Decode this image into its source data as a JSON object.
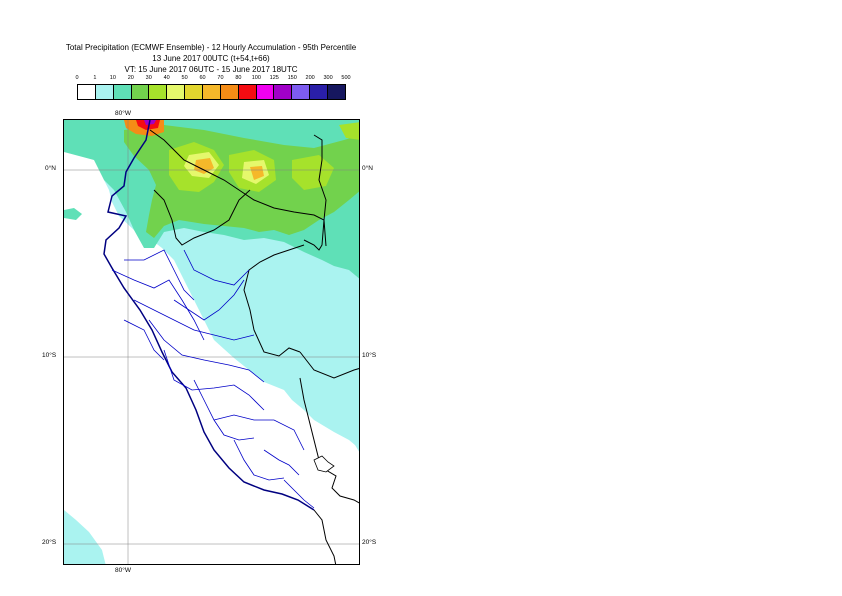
{
  "header": {
    "title": "Total Precipitation (ECMWF Ensemble) - 12 Hourly Accumulation - 95th Percentile",
    "base_time": "13 June 2017 00UTC (t+54,t+66)",
    "valid_time": "VT: 15 June 2017 06UTC - 15 June 2017 18UTC"
  },
  "legend": {
    "thresholds": [
      "0",
      "1",
      "10",
      "20",
      "30",
      "40",
      "50",
      "60",
      "70",
      "80",
      "100",
      "125",
      "150",
      "200",
      "300",
      "500"
    ],
    "colors": [
      "#ffffff",
      "#aaf3f0",
      "#5fe0b7",
      "#72d24d",
      "#a6e22b",
      "#e5f86c",
      "#e2d62e",
      "#f5b82a",
      "#f58c16",
      "#f50c12",
      "#f000f0",
      "#a000c8",
      "#7d5cf0",
      "#2a1fa8",
      "#16175f"
    ]
  },
  "map": {
    "lat_labels": [
      "0°N",
      "10°S",
      "20°S"
    ],
    "lon_label": "80°W",
    "colors": {
      "ocean_light": "#aaf3f0",
      "rain_medium": "#5fe0b7",
      "rain_heavy": "#72d24d",
      "rain_very_heavy": "#a6e22b",
      "coastline": "#000080",
      "borders": "#000000",
      "regions": "#0000c8",
      "gridlines": "#808080"
    }
  }
}
